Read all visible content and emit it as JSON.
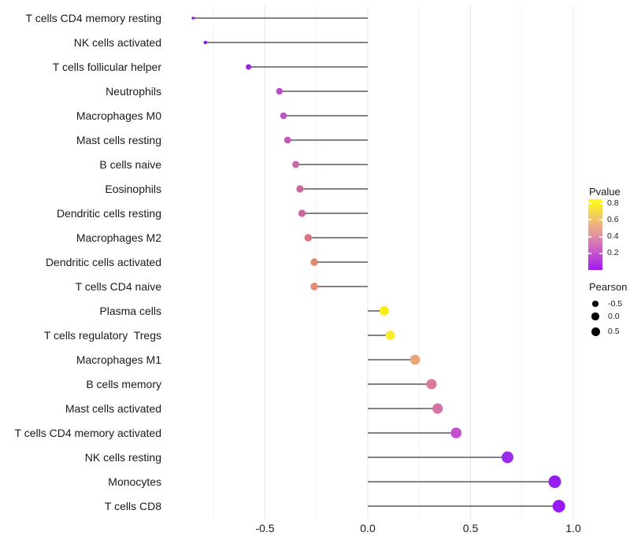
{
  "figure": {
    "background": "#ffffff"
  },
  "chart_data": {
    "type": "lollipop",
    "orientation": "horizontal",
    "title": "",
    "xlabel": "",
    "ylabel": "",
    "grid": "vertical-only",
    "legend_position": "right",
    "categories": [
      "T cells CD4 memory resting",
      "NK cells activated",
      "T cells follicular helper",
      "Neutrophils",
      "Macrophages M0",
      "Mast cells resting",
      "B cells naive",
      "Eosinophils",
      "Dendritic cells resting",
      "Macrophages M2",
      "Dendritic cells activated",
      "T cells CD4 naive",
      "Plasma cells",
      "T cells regulatory  Tregs",
      "Macrophages M1",
      "B cells memory",
      "Mast cells activated",
      "T cells CD4 memory activated",
      "NK cells resting",
      "Monocytes",
      "T cells CD8"
    ],
    "series": [
      {
        "name": "Pearson",
        "values": [
          -0.85,
          -0.79,
          -0.58,
          -0.43,
          -0.41,
          -0.39,
          -0.35,
          -0.33,
          -0.32,
          -0.29,
          -0.26,
          -0.26,
          0.08,
          0.11,
          0.23,
          0.31,
          0.34,
          0.43,
          0.68,
          0.91,
          0.93
        ]
      }
    ],
    "point_colors": [
      "#8C1BD9",
      "#8E20DC",
      "#9726DD",
      "#BC49C8",
      "#C053C3",
      "#C258BE",
      "#CD64A5",
      "#D0659B",
      "#CE66A0",
      "#DB7183",
      "#E28A71",
      "#E58C72",
      "#F8EC13",
      "#F7EC33",
      "#EAA478",
      "#DA7B95",
      "#D573A9",
      "#C551D1",
      "#9C2BEA",
      "#951BF1",
      "#9719F3"
    ],
    "stem_color": "#58595b",
    "axis_text_color": "#1a1a1a",
    "gridline_major_color": "#e5e5e5",
    "gridline_minor_color": "#f0f0f0",
    "xlim": [
      -0.94,
      1.02
    ],
    "x_ticks": {
      "values": [
        -0.5,
        0.0,
        0.5,
        1.0
      ],
      "labels": [
        "-0.5",
        "0.0",
        "0.5",
        "1.0"
      ]
    },
    "x_minor_gridlines": [
      -0.75,
      -0.25,
      0.25,
      0.75
    ],
    "legends": {
      "color": {
        "title": "Pvalue",
        "gradient_stops_top_to_bottom": [
          "#FCFA25",
          "#FAF222",
          "#F2C46C",
          "#E395A3",
          "#CC5EC6",
          "#B133E3",
          "#A117F2"
        ],
        "gradient_stop_positions_pct": [
          0,
          6,
          28,
          50,
          72,
          90,
          100
        ],
        "tick_labels": [
          "0.8",
          "0.6",
          "0.4",
          "0.2"
        ],
        "tick_values": [
          0.8,
          0.6,
          0.4,
          0.2
        ],
        "value_range_top_to_bottom": [
          0.85,
          0.0
        ]
      },
      "size": {
        "title": "Pearson",
        "tick_labels": [
          "-0.5",
          "0.0",
          "0.5"
        ],
        "tick_values": [
          -0.5,
          0.0,
          0.5
        ],
        "dot_color": "#000000"
      }
    }
  }
}
